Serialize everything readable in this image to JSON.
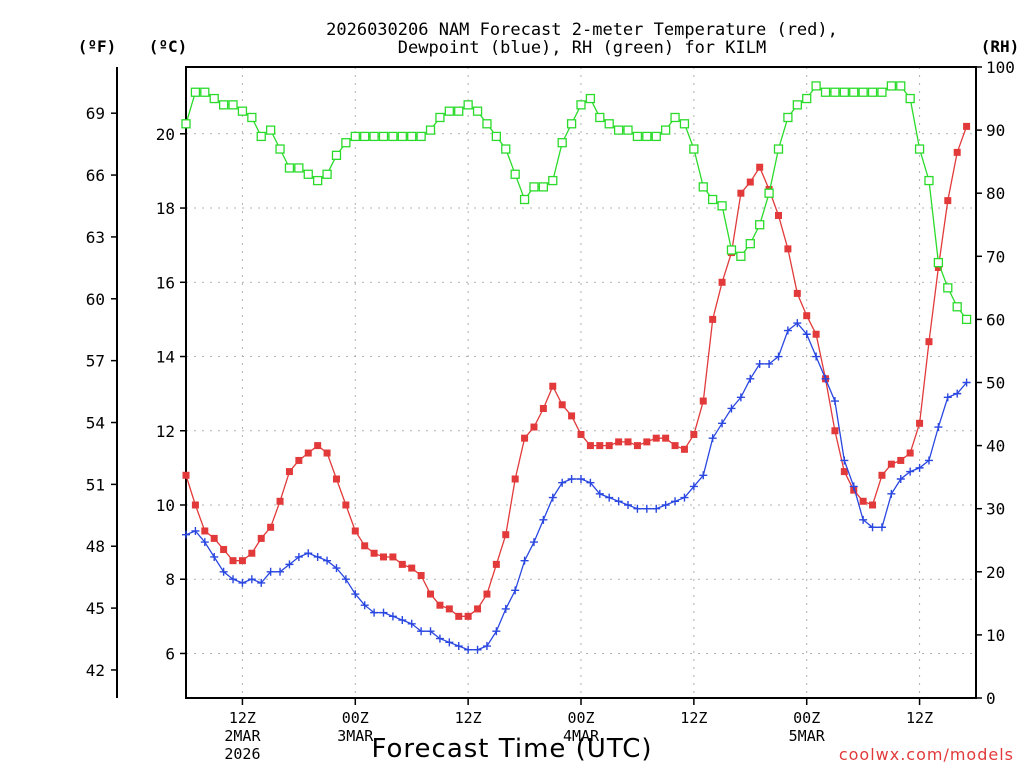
{
  "chart_data": {
    "type": "line",
    "title_line1": "2026030206 NAM Forecast 2-meter Temperature (red),",
    "title_line2": "Dewpoint (blue), RH (green) for KILM",
    "left_units_f": "(ºF)",
    "left_units_c": "(ºC)",
    "right_units": "(RH)",
    "xlabel": "Forecast Time (UTC)",
    "credit": "coolwx.com/models",
    "x_unit": "forecast hour",
    "xlim": [
      0,
      84
    ],
    "ylim_c": [
      4.8,
      21.8
    ],
    "ylim_rh": [
      0,
      100
    ],
    "f_ticks": [
      "42",
      "45",
      "48",
      "51",
      "54",
      "57",
      "60",
      "63",
      "66",
      "69"
    ],
    "c_ticks": [
      "6",
      "8",
      "10",
      "12",
      "14",
      "16",
      "18",
      "20"
    ],
    "rh_ticks": [
      "0",
      "10",
      "20",
      "30",
      "40",
      "50",
      "60",
      "70",
      "80",
      "90",
      "100"
    ],
    "x_ticks": [
      {
        "x": 6,
        "l1": "12Z",
        "l2": "2MAR",
        "l3": "2026"
      },
      {
        "x": 18,
        "l1": "00Z",
        "l2": "3MAR",
        "l3": ""
      },
      {
        "x": 30,
        "l1": "12Z",
        "l2": "",
        "l3": ""
      },
      {
        "x": 42,
        "l1": "00Z",
        "l2": "4MAR",
        "l3": ""
      },
      {
        "x": 54,
        "l1": "12Z",
        "l2": "",
        "l3": ""
      },
      {
        "x": 66,
        "l1": "00Z",
        "l2": "5MAR",
        "l3": ""
      },
      {
        "x": 78,
        "l1": "12Z",
        "l2": "",
        "l3": ""
      }
    ],
    "series": [
      {
        "name": "Temperature",
        "color": "#e23a3a",
        "axis": "c",
        "marker": "filled-square",
        "values": [
          10.8,
          10.0,
          9.3,
          9.1,
          8.8,
          8.5,
          8.5,
          8.7,
          9.1,
          9.4,
          10.1,
          10.9,
          11.2,
          11.4,
          11.6,
          11.4,
          10.7,
          10.0,
          9.3,
          8.9,
          8.7,
          8.6,
          8.6,
          8.4,
          8.3,
          8.1,
          7.6,
          7.3,
          7.2,
          7.0,
          7.0,
          7.2,
          7.6,
          8.4,
          9.2,
          10.7,
          11.8,
          12.1,
          12.6,
          13.2,
          12.7,
          12.4,
          11.9,
          11.6,
          11.6,
          11.6,
          11.7,
          11.7,
          11.6,
          11.7,
          11.8,
          11.8,
          11.6,
          11.5,
          11.9,
          12.8,
          15.0,
          16.0,
          16.8,
          18.4,
          18.7,
          19.1,
          18.5,
          17.8,
          16.9,
          15.7,
          15.1,
          14.6,
          13.4,
          12.0,
          10.9,
          10.4,
          10.1,
          10.0,
          10.8,
          11.1,
          11.2,
          11.4,
          12.2,
          14.4,
          16.4,
          18.2,
          19.5,
          20.2
        ]
      },
      {
        "name": "Dewpoint",
        "color": "#2a47e0",
        "axis": "c",
        "marker": "plus",
        "values": [
          9.2,
          9.3,
          9.0,
          8.6,
          8.2,
          8.0,
          7.9,
          8.0,
          7.9,
          8.2,
          8.2,
          8.4,
          8.6,
          8.7,
          8.6,
          8.5,
          8.3,
          8.0,
          7.6,
          7.3,
          7.1,
          7.1,
          7.0,
          6.9,
          6.8,
          6.6,
          6.6,
          6.4,
          6.3,
          6.2,
          6.1,
          6.1,
          6.2,
          6.6,
          7.2,
          7.7,
          8.5,
          9.0,
          9.6,
          10.2,
          10.6,
          10.7,
          10.7,
          10.6,
          10.3,
          10.2,
          10.1,
          10.0,
          9.9,
          9.9,
          9.9,
          10.0,
          10.1,
          10.2,
          10.5,
          10.8,
          11.8,
          12.2,
          12.6,
          12.9,
          13.4,
          13.8,
          13.8,
          14.0,
          14.7,
          14.9,
          14.6,
          14.0,
          13.4,
          12.8,
          11.2,
          10.5,
          9.6,
          9.4,
          9.4,
          10.3,
          10.7,
          10.9,
          11.0,
          11.2,
          12.1,
          12.9,
          13.0,
          13.3
        ]
      },
      {
        "name": "RH",
        "color": "#2adb2a",
        "axis": "rh",
        "marker": "open-square",
        "values": [
          91,
          96,
          96,
          95,
          94,
          94,
          93,
          92,
          89,
          90,
          87,
          84,
          84,
          83,
          82,
          83,
          86,
          88,
          89,
          89,
          89,
          89,
          89,
          89,
          89,
          89,
          90,
          92,
          93,
          93,
          94,
          93,
          91,
          89,
          87,
          83,
          79,
          81,
          81,
          82,
          88,
          91,
          94,
          95,
          92,
          91,
          90,
          90,
          89,
          89,
          89,
          90,
          92,
          91,
          87,
          81,
          79,
          78,
          71,
          70,
          72,
          75,
          80,
          87,
          92,
          94,
          95,
          97,
          96,
          96,
          96,
          96,
          96,
          96,
          96,
          97,
          97,
          95,
          87,
          82,
          69,
          65,
          62,
          60
        ]
      }
    ]
  }
}
